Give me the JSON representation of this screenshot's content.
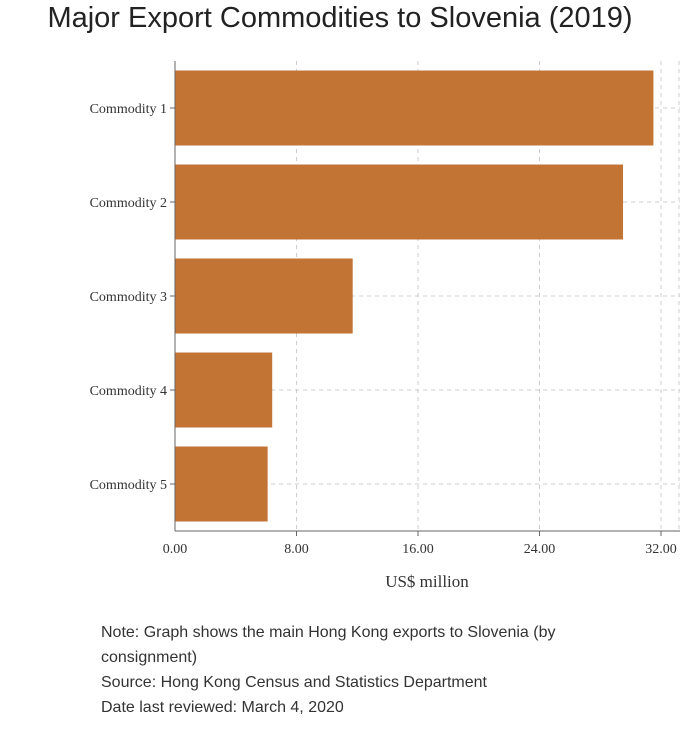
{
  "title": "Major Export Commodities to Slovenia (2019)",
  "chart_data": {
    "type": "bar",
    "orientation": "horizontal",
    "categories": [
      "Commodity 1",
      "Commodity 2",
      "Commodity 3",
      "Commodity 4",
      "Commodity 5"
    ],
    "values": [
      31.5,
      29.5,
      11.7,
      6.4,
      6.1
    ],
    "xlabel": "US$ million",
    "ylabel": "",
    "xlim": [
      0,
      32
    ],
    "xticks": [
      "0.00",
      "8.00",
      "16.00",
      "24.00",
      "32.00"
    ],
    "tick_values": [
      0,
      8,
      16,
      24,
      32
    ],
    "grid": true,
    "bar_color": "#c27435"
  },
  "notes": {
    "note": "Note: Graph shows the main Hong Kong exports to Slovenia (by consignment)",
    "source": "Source: Hong Kong Census and Statistics Department",
    "reviewed": "Date last reviewed: March 4, 2020"
  }
}
